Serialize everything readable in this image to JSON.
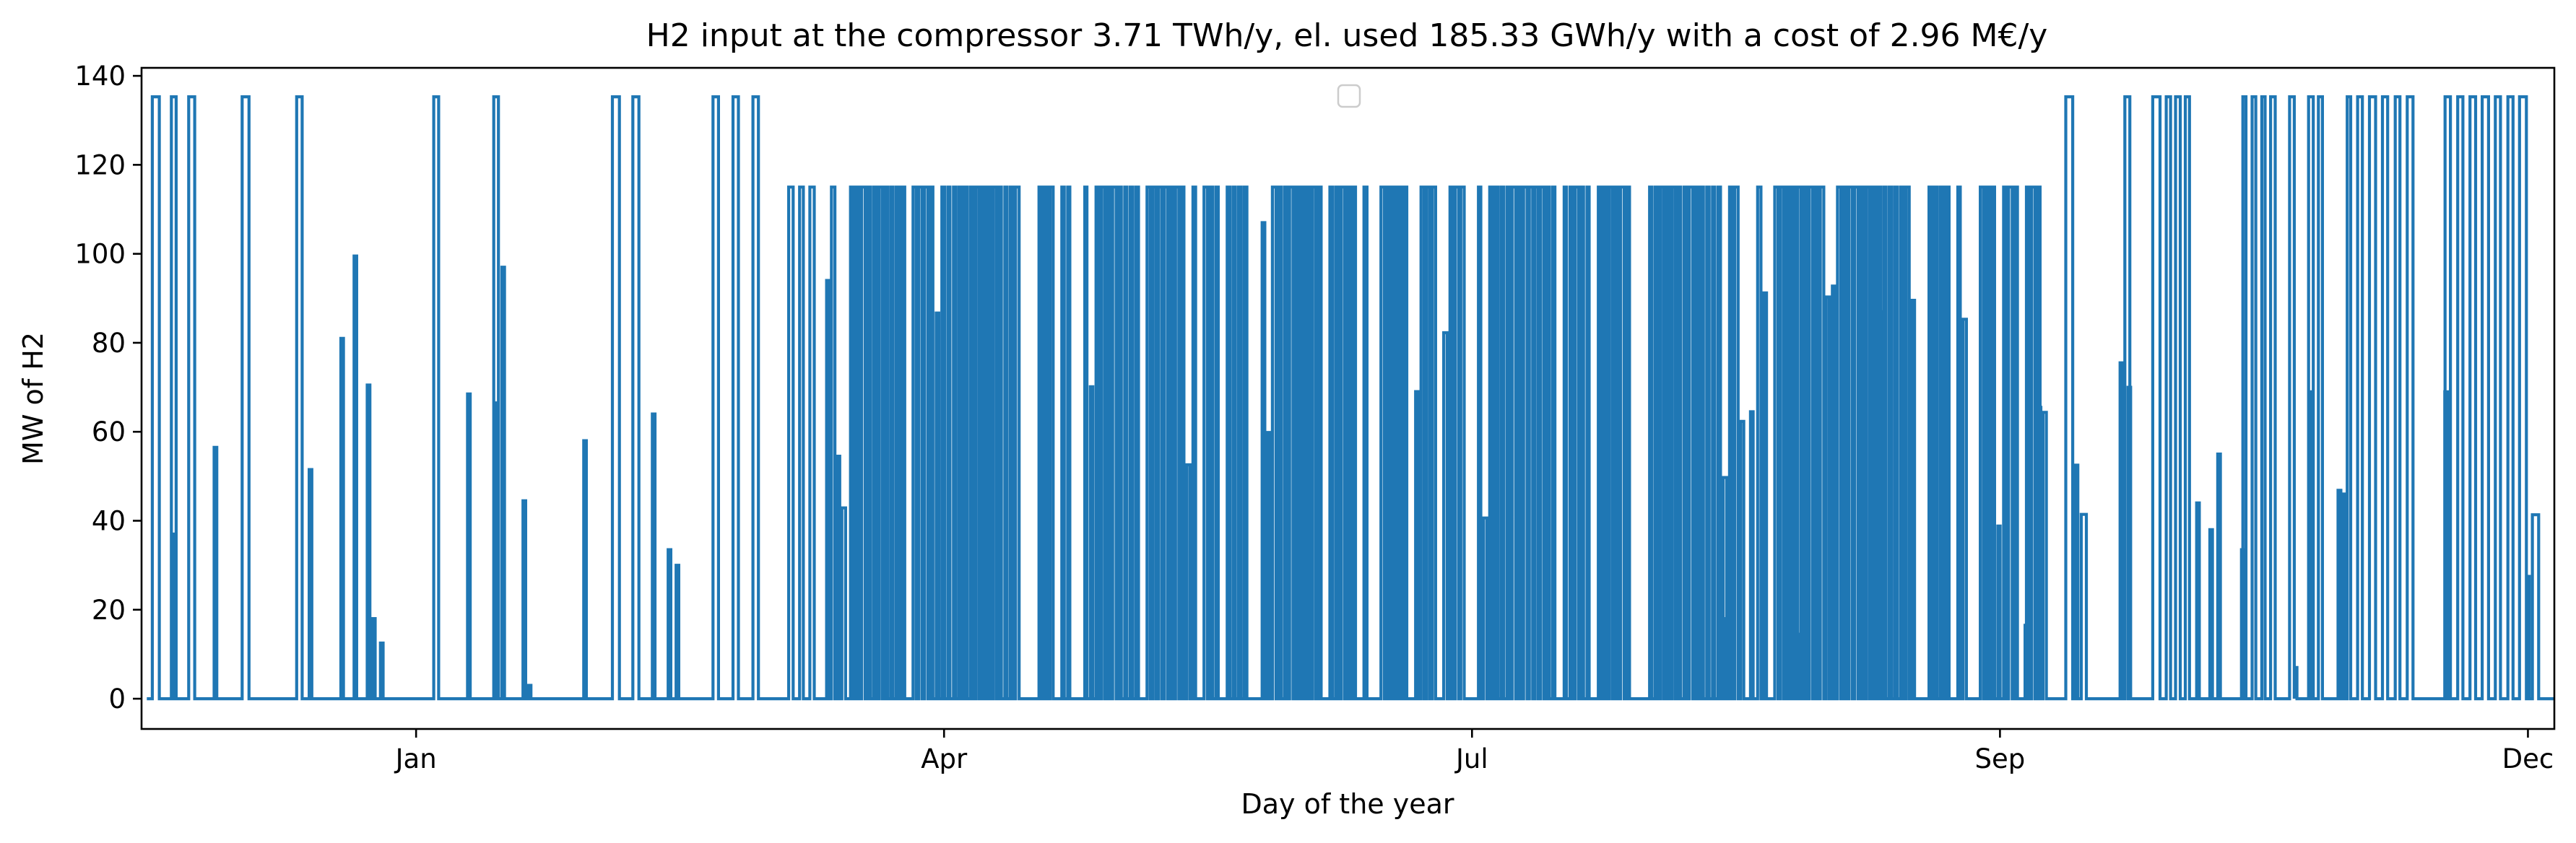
{
  "chart_data": {
    "type": "line",
    "title": "H2 input at the compressor 3.71 TWh/y, el. used 185.33 GWh/y with a cost of 2.96 M€/y",
    "xlabel": "Day of the year",
    "ylabel": "MW of H2",
    "x_unit": "day of year (1 = Jan 1)",
    "xlim": [
      -52,
      405
    ],
    "ylim": [
      -6.8,
      141.8
    ],
    "xtick_positions": [
      0,
      100,
      200,
      300,
      400
    ],
    "xtick_labels": [
      "Jan",
      "Apr",
      "Jul",
      "Sep",
      "Dec"
    ],
    "yticks": [
      0,
      20,
      40,
      60,
      80,
      100,
      120,
      140
    ],
    "grid": false,
    "legend": {
      "placement": "top-center",
      "entries": []
    },
    "series_color": "#1f77b4",
    "segments": [
      {
        "start": -51.0,
        "end": -17.0,
        "base": 135.3,
        "cycles": 10,
        "duty": 0.34,
        "sparsity": 0.58,
        "partial_rate": 0.12
      },
      {
        "start": -17.0,
        "end": 70.0,
        "base": 135.3,
        "cycles": 23,
        "duty": 0.28,
        "sparsity": 0.55,
        "partial_rate": 0.15
      },
      {
        "start": 70.0,
        "end": 82.0,
        "base": 115.0,
        "cycles": 6,
        "duty": 0.42,
        "sparsity": 0.1,
        "partial_rate": 0.15
      },
      {
        "start": 82.0,
        "end": 309.0,
        "base": 115.0,
        "cycles": 210,
        "duty": 0.5,
        "sparsity": 0.1,
        "partial_rate": 0.12
      },
      {
        "start": 309.0,
        "end": 331.0,
        "base": 135.3,
        "cycles": 8,
        "duty": 0.42,
        "sparsity": 0.3,
        "partial_rate": 0.2
      },
      {
        "start": 331.0,
        "end": 367.0,
        "base": 135.3,
        "cycles": 20,
        "duty": 0.4,
        "sparsity": 0.35,
        "partial_rate": 0.2
      },
      {
        "start": 367.0,
        "end": 405.0,
        "base": 135.3,
        "cycles": 16,
        "duty": 0.45,
        "sparsity": 0.25,
        "partial_rate": 0.15
      }
    ],
    "gaps": [
      [
        -48.5,
        -46.5
      ],
      [
        -22.0,
        -18.0
      ],
      [
        -5.0,
        -1.0
      ],
      [
        6.0,
        10.0
      ],
      [
        33.0,
        35.0
      ],
      [
        45.5,
        47.5
      ],
      [
        114.0,
        116.5
      ],
      [
        124.5,
        126.0
      ],
      [
        147.5,
        149.5
      ],
      [
        157.5,
        160.0
      ],
      [
        180.0,
        182.0
      ],
      [
        230.0,
        233.0
      ],
      [
        252.0,
        253.5
      ],
      [
        284.0,
        286.5
      ],
      [
        309.5,
        312.0
      ],
      [
        318.0,
        322.0
      ],
      [
        337.5,
        341.0
      ],
      [
        353.0,
        355.0
      ],
      [
        378.0,
        383.0
      ]
    ],
    "partial_peaks": [
      {
        "x": -46.0,
        "y": 37
      },
      {
        "x": -38.0,
        "y": 56.5
      },
      {
        "x": -20.0,
        "y": 51.5
      },
      {
        "x": -14.0,
        "y": 81.0
      },
      {
        "x": -11.5,
        "y": 99.5
      },
      {
        "x": -9.0,
        "y": 70.5
      },
      {
        "x": -8.0,
        "y": 18.0
      },
      {
        "x": -6.5,
        "y": 12.5
      },
      {
        "x": 10.0,
        "y": 68.5
      },
      {
        "x": 15.0,
        "y": 66.5
      },
      {
        "x": 16.5,
        "y": 97.0
      },
      {
        "x": 20.5,
        "y": 44.5
      },
      {
        "x": 21.5,
        "y": 3.0
      },
      {
        "x": 32.0,
        "y": 58.0
      },
      {
        "x": 45.0,
        "y": 64.0
      },
      {
        "x": 48.0,
        "y": 33.5
      },
      {
        "x": 49.5,
        "y": 30.0
      },
      {
        "x": 78.0,
        "y": 94.0
      },
      {
        "x": 80.0,
        "y": 54.5
      },
      {
        "x": 89.0,
        "y": 32.5
      },
      {
        "x": 160.5,
        "y": 107.0
      },
      {
        "x": 204.0,
        "y": 69.5
      },
      {
        "x": 229.5,
        "y": 38.5
      },
      {
        "x": 247.5,
        "y": 18.0
      },
      {
        "x": 253.0,
        "y": 64.5
      },
      {
        "x": 262.5,
        "y": 14.5
      },
      {
        "x": 278.0,
        "y": 87.0
      },
      {
        "x": 305.0,
        "y": 16.5
      },
      {
        "x": 307.5,
        "y": 65.5
      },
      {
        "x": 314.5,
        "y": 52.5
      },
      {
        "x": 323.0,
        "y": 75.5
      },
      {
        "x": 324.5,
        "y": 70.0
      },
      {
        "x": 337.5,
        "y": 44.0
      },
      {
        "x": 340.0,
        "y": 38.0
      },
      {
        "x": 341.5,
        "y": 55.0
      },
      {
        "x": 346.0,
        "y": 33.5
      },
      {
        "x": 356.0,
        "y": 7.0
      },
      {
        "x": 359.0,
        "y": 69.0
      },
      {
        "x": 365.0,
        "y": 46.0
      },
      {
        "x": 384.5,
        "y": 69.0
      },
      {
        "x": 400.0,
        "y": 27.5
      }
    ]
  }
}
